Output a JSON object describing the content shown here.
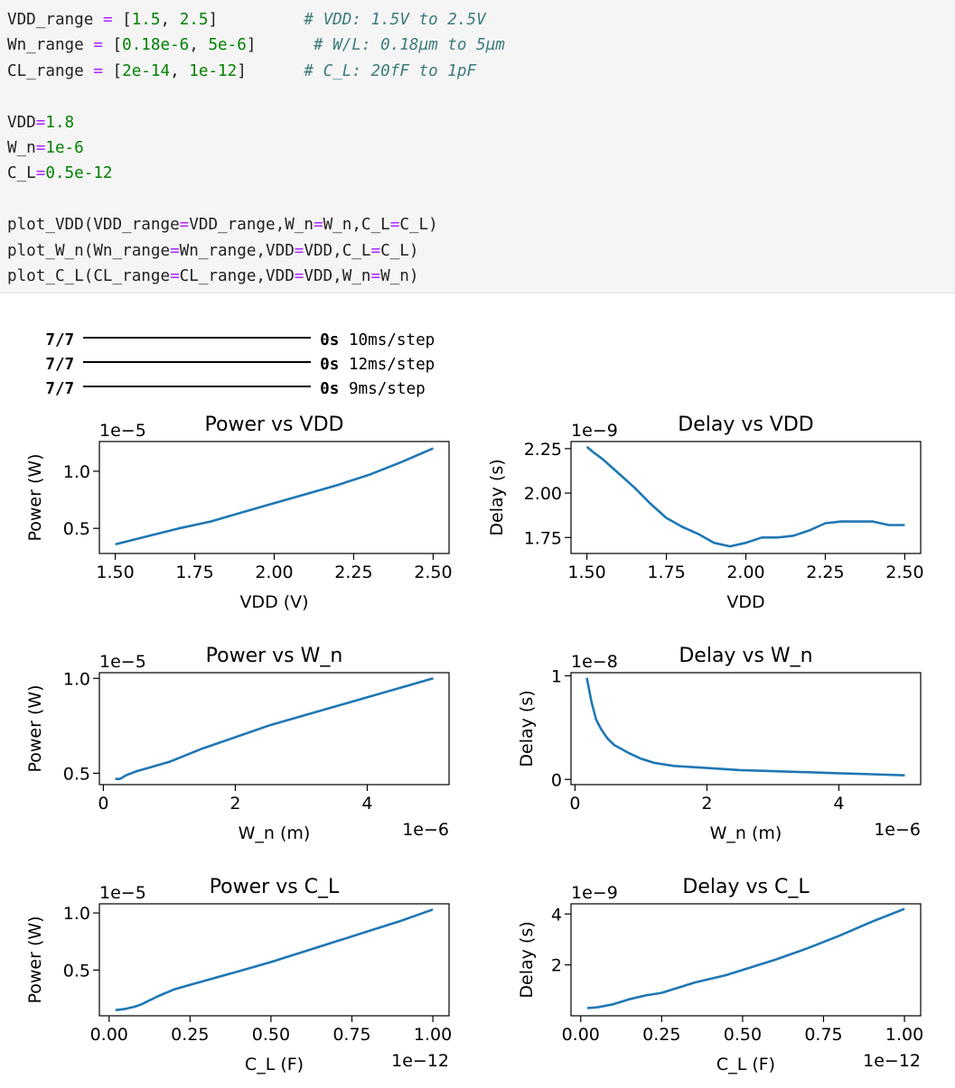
{
  "code_cell": {
    "lines": [
      [
        {
          "t": "VDD_range "
        },
        {
          "t": "=",
          "c": "op"
        },
        {
          "t": " ["
        },
        {
          "t": "1.5",
          "c": "num"
        },
        {
          "t": ", "
        },
        {
          "t": "2.5",
          "c": "num"
        },
        {
          "t": "]         "
        },
        {
          "t": "# VDD: 1.5V to 2.5V",
          "c": "cmt"
        }
      ],
      [
        {
          "t": "Wn_range "
        },
        {
          "t": "=",
          "c": "op"
        },
        {
          "t": " ["
        },
        {
          "t": "0.18e-6",
          "c": "num"
        },
        {
          "t": ", "
        },
        {
          "t": "5e-6",
          "c": "num"
        },
        {
          "t": "]      "
        },
        {
          "t": "# W/L: 0.18µm to 5µm",
          "c": "cmt"
        }
      ],
      [
        {
          "t": "CL_range "
        },
        {
          "t": "=",
          "c": "op"
        },
        {
          "t": " ["
        },
        {
          "t": "2e-14",
          "c": "num"
        },
        {
          "t": ", "
        },
        {
          "t": "1e-12",
          "c": "num"
        },
        {
          "t": "]      "
        },
        {
          "t": "# C_L: 20fF to 1pF",
          "c": "cmt"
        }
      ],
      [],
      [
        {
          "t": "VDD"
        },
        {
          "t": "=",
          "c": "op"
        },
        {
          "t": "1.8",
          "c": "num"
        }
      ],
      [
        {
          "t": "W_n"
        },
        {
          "t": "=",
          "c": "op"
        },
        {
          "t": "1e-6",
          "c": "num"
        }
      ],
      [
        {
          "t": "C_L"
        },
        {
          "t": "=",
          "c": "op"
        },
        {
          "t": "0.5e-12",
          "c": "num"
        }
      ],
      [],
      [
        {
          "t": "plot_VDD(VDD_range"
        },
        {
          "t": "=",
          "c": "op"
        },
        {
          "t": "VDD_range,W_n"
        },
        {
          "t": "=",
          "c": "op"
        },
        {
          "t": "W_n,C_L"
        },
        {
          "t": "=",
          "c": "op"
        },
        {
          "t": "C_L)"
        }
      ],
      [
        {
          "t": "plot_W_n(Wn_range"
        },
        {
          "t": "=",
          "c": "op"
        },
        {
          "t": "Wn_range,VDD"
        },
        {
          "t": "=",
          "c": "op"
        },
        {
          "t": "VDD,C_L"
        },
        {
          "t": "=",
          "c": "op"
        },
        {
          "t": "C_L)"
        }
      ],
      [
        {
          "t": "plot_C_L(CL_range"
        },
        {
          "t": "=",
          "c": "op"
        },
        {
          "t": "CL_range,VDD"
        },
        {
          "t": "=",
          "c": "op"
        },
        {
          "t": "VDD,W_n"
        },
        {
          "t": "=",
          "c": "op"
        },
        {
          "t": "W_n)"
        }
      ]
    ]
  },
  "progress": [
    {
      "count": "7/7",
      "time": "0s",
      "rate": "10ms/step"
    },
    {
      "count": "7/7",
      "time": "0s",
      "rate": "12ms/step"
    },
    {
      "count": "7/7",
      "time": "0s",
      "rate": "9ms/step"
    }
  ],
  "chart_data": [
    {
      "type": "line",
      "title": "Power vs VDD",
      "xlabel": "VDD (V)",
      "ylabel": "Power (W)",
      "y_scale_label": "1e−5",
      "x_scale_label": "",
      "xlim": [
        1.45,
        2.55
      ],
      "ylim": [
        0.28,
        1.26
      ],
      "xticks": [
        1.5,
        1.75,
        2.0,
        2.25,
        2.5
      ],
      "xticklabels": [
        "1.50",
        "1.75",
        "2.00",
        "2.25",
        "2.50"
      ],
      "yticks": [
        0.5,
        1.0
      ],
      "yticklabels": [
        "0.5",
        "1.0"
      ],
      "x": [
        1.5,
        1.6,
        1.7,
        1.8,
        1.9,
        2.0,
        2.1,
        2.2,
        2.3,
        2.4,
        2.5
      ],
      "y": [
        0.36,
        0.43,
        0.5,
        0.56,
        0.64,
        0.72,
        0.8,
        0.88,
        0.97,
        1.08,
        1.2
      ],
      "color": "#1f77b4"
    },
    {
      "type": "line",
      "title": "Delay vs VDD",
      "xlabel": "VDD",
      "ylabel": "Delay (s)",
      "y_scale_label": "1e−9",
      "x_scale_label": "",
      "xlim": [
        1.45,
        2.55
      ],
      "ylim": [
        1.66,
        2.29
      ],
      "xticks": [
        1.5,
        1.75,
        2.0,
        2.25,
        2.5
      ],
      "xticklabels": [
        "1.50",
        "1.75",
        "2.00",
        "2.25",
        "2.50"
      ],
      "yticks": [
        1.75,
        2.0,
        2.25
      ],
      "yticklabels": [
        "1.75",
        "2.00",
        "2.25"
      ],
      "x": [
        1.5,
        1.52,
        1.55,
        1.6,
        1.65,
        1.7,
        1.75,
        1.8,
        1.85,
        1.9,
        1.95,
        2.0,
        2.05,
        2.1,
        2.15,
        2.2,
        2.25,
        2.3,
        2.35,
        2.4,
        2.45,
        2.5
      ],
      "y": [
        2.26,
        2.23,
        2.19,
        2.11,
        2.03,
        1.94,
        1.86,
        1.81,
        1.77,
        1.72,
        1.7,
        1.72,
        1.75,
        1.75,
        1.76,
        1.79,
        1.83,
        1.84,
        1.84,
        1.84,
        1.82,
        1.82
      ],
      "color": "#1f77b4"
    },
    {
      "type": "line",
      "title": "Power vs W_n",
      "xlabel": "W_n (m)",
      "ylabel": "Power (W)",
      "y_scale_label": "1e−5",
      "x_scale_label": "1e−6",
      "xlim": [
        -0.06,
        5.24
      ],
      "ylim": [
        0.44,
        1.03
      ],
      "xticks": [
        0,
        2,
        4
      ],
      "xticklabels": [
        "0",
        "2",
        "4"
      ],
      "yticks": [
        0.5,
        1.0
      ],
      "yticklabels": [
        "0.5",
        "1.0"
      ],
      "x": [
        0.18,
        0.25,
        0.35,
        0.5,
        0.7,
        1.0,
        1.5,
        2.0,
        2.5,
        3.0,
        3.5,
        4.0,
        4.5,
        5.0
      ],
      "y": [
        0.47,
        0.47,
        0.49,
        0.51,
        0.53,
        0.56,
        0.63,
        0.69,
        0.75,
        0.8,
        0.85,
        0.9,
        0.95,
        1.0
      ],
      "color": "#1f77b4"
    },
    {
      "type": "line",
      "title": "Delay vs W_n",
      "xlabel": "W_n (m)",
      "ylabel": "Delay (s)",
      "y_scale_label": "1e−8",
      "x_scale_label": "1e−6",
      "xlim": [
        -0.06,
        5.24
      ],
      "ylim": [
        -0.05,
        1.03
      ],
      "xticks": [
        0,
        2,
        4
      ],
      "xticklabels": [
        "0",
        "2",
        "4"
      ],
      "yticks": [
        0,
        1
      ],
      "yticklabels": [
        "0",
        "1"
      ],
      "x": [
        0.18,
        0.25,
        0.32,
        0.4,
        0.5,
        0.6,
        0.8,
        1.0,
        1.2,
        1.5,
        2.0,
        2.5,
        3.0,
        3.5,
        4.0,
        4.5,
        5.0
      ],
      "y": [
        0.98,
        0.75,
        0.58,
        0.48,
        0.39,
        0.33,
        0.26,
        0.2,
        0.16,
        0.13,
        0.11,
        0.09,
        0.08,
        0.07,
        0.06,
        0.05,
        0.04
      ],
      "color": "#1f77b4"
    },
    {
      "type": "line",
      "title": "Power vs C_L",
      "xlabel": "C_L (F)",
      "ylabel": "Power (W)",
      "y_scale_label": "1e−5",
      "x_scale_label": "1e−12",
      "xlim": [
        -0.03,
        1.05
      ],
      "ylim": [
        0.1,
        1.08
      ],
      "xticks": [
        0,
        0.25,
        0.5,
        0.75,
        1.0
      ],
      "xticklabels": [
        "0.00",
        "0.25",
        "0.50",
        "0.75",
        "1.00"
      ],
      "yticks": [
        0.5,
        1.0
      ],
      "yticklabels": [
        "0.5",
        "1.0"
      ],
      "x": [
        0.02,
        0.05,
        0.08,
        0.1,
        0.15,
        0.2,
        0.25,
        0.3,
        0.4,
        0.5,
        0.6,
        0.7,
        0.8,
        0.9,
        1.0
      ],
      "y": [
        0.15,
        0.16,
        0.18,
        0.2,
        0.27,
        0.33,
        0.37,
        0.41,
        0.49,
        0.57,
        0.66,
        0.75,
        0.84,
        0.93,
        1.03
      ],
      "color": "#1f77b4"
    },
    {
      "type": "line",
      "title": "Delay vs C_L",
      "xlabel": "C_L (F)",
      "ylabel": "Delay (s)",
      "y_scale_label": "1e−9",
      "x_scale_label": "1e−12",
      "xlim": [
        -0.03,
        1.05
      ],
      "ylim": [
        0.0,
        4.4
      ],
      "xticks": [
        0,
        0.25,
        0.5,
        0.75,
        1.0
      ],
      "xticklabels": [
        "0.00",
        "0.25",
        "0.50",
        "0.75",
        "1.00"
      ],
      "yticks": [
        2,
        4
      ],
      "yticklabels": [
        "2",
        "4"
      ],
      "x": [
        0.02,
        0.05,
        0.1,
        0.15,
        0.2,
        0.25,
        0.3,
        0.35,
        0.4,
        0.45,
        0.5,
        0.6,
        0.7,
        0.8,
        0.9,
        1.0
      ],
      "y": [
        0.3,
        0.33,
        0.45,
        0.65,
        0.8,
        0.9,
        1.1,
        1.3,
        1.45,
        1.6,
        1.8,
        2.2,
        2.65,
        3.15,
        3.7,
        4.2
      ],
      "color": "#1f77b4"
    }
  ]
}
